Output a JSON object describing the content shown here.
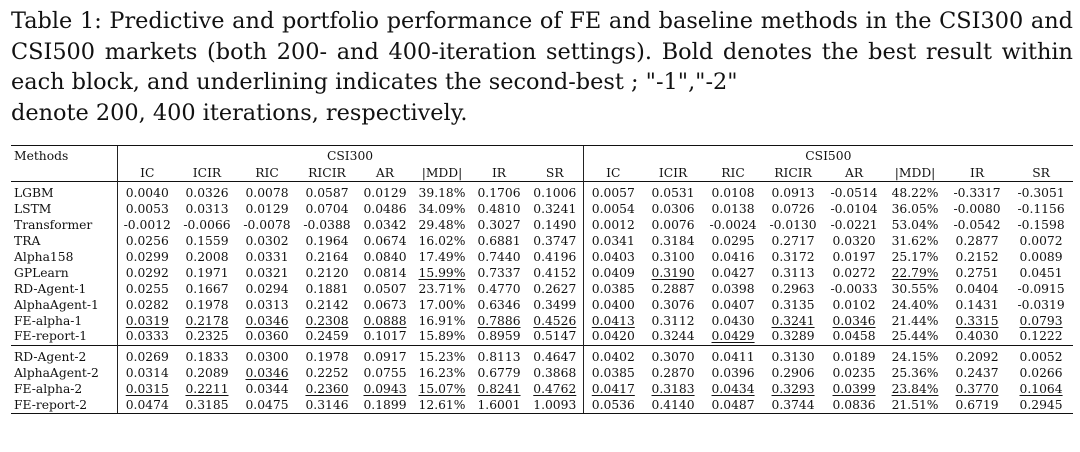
{
  "caption": {
    "line1": "Table 1: Predictive and portfolio performance of FE and baseline methods in the",
    "line2": "CSI300 and CSI500 markets (both 200- and 400-iteration settings). Bold denotes the",
    "line3": "best result within each block, and underlining indicates the second-best ; \"-1\",\"-2\"",
    "line4": "denote 200, 400 iterations, respectively."
  },
  "table": {
    "methods_header": "Methods",
    "groups": [
      "CSI300",
      "CSI500"
    ],
    "columns": [
      "IC",
      "ICIR",
      "RIC",
      "RICIR",
      "AR",
      "|MDD|",
      "IR",
      "SR",
      "IC",
      "ICIR",
      "RIC",
      "RICIR",
      "AR",
      "|MDD|",
      "IR",
      "SR"
    ],
    "blocks": [
      {
        "rows": [
          {
            "method": "LGBM",
            "cells": [
              {
                "v": "0.0040"
              },
              {
                "v": "0.0326"
              },
              {
                "v": "0.0078"
              },
              {
                "v": "0.0587"
              },
              {
                "v": "0.0129"
              },
              {
                "v": "39.18%"
              },
              {
                "v": "0.1706"
              },
              {
                "v": "0.1006"
              },
              {
                "v": "0.0057"
              },
              {
                "v": "0.0531"
              },
              {
                "v": "0.0108"
              },
              {
                "v": "0.0913"
              },
              {
                "v": "-0.0514"
              },
              {
                "v": "48.22%"
              },
              {
                "v": "-0.3317"
              },
              {
                "v": "-0.3051"
              }
            ]
          },
          {
            "method": "LSTM",
            "cells": [
              {
                "v": "0.0053"
              },
              {
                "v": "0.0313"
              },
              {
                "v": "0.0129"
              },
              {
                "v": "0.0704"
              },
              {
                "v": "0.0486"
              },
              {
                "v": "34.09%"
              },
              {
                "v": "0.4810"
              },
              {
                "v": "0.3241"
              },
              {
                "v": "0.0054"
              },
              {
                "v": "0.0306"
              },
              {
                "v": "0.0138"
              },
              {
                "v": "0.0726"
              },
              {
                "v": "-0.0104"
              },
              {
                "v": "36.05%"
              },
              {
                "v": "-0.0080"
              },
              {
                "v": "-0.1156"
              }
            ]
          },
          {
            "method": "Transformer",
            "cells": [
              {
                "v": "-0.0012"
              },
              {
                "v": "-0.0066"
              },
              {
                "v": "-0.0078"
              },
              {
                "v": "-0.0388"
              },
              {
                "v": "0.0342"
              },
              {
                "v": "29.48%"
              },
              {
                "v": "0.3027"
              },
              {
                "v": "0.1490"
              },
              {
                "v": "0.0012"
              },
              {
                "v": "0.0076"
              },
              {
                "v": "-0.0024"
              },
              {
                "v": "-0.0130"
              },
              {
                "v": "-0.0221"
              },
              {
                "v": "53.04%"
              },
              {
                "v": "-0.0542"
              },
              {
                "v": "-0.1598"
              }
            ]
          },
          {
            "method": "TRA",
            "cells": [
              {
                "v": "0.0256"
              },
              {
                "v": "0.1559"
              },
              {
                "v": "0.0302"
              },
              {
                "v": "0.1964"
              },
              {
                "v": "0.0674"
              },
              {
                "v": "16.02%"
              },
              {
                "v": "0.6881"
              },
              {
                "v": "0.3747"
              },
              {
                "v": "0.0341"
              },
              {
                "v": "0.3184"
              },
              {
                "v": "0.0295"
              },
              {
                "v": "0.2717"
              },
              {
                "v": "0.0320"
              },
              {
                "v": "31.62%"
              },
              {
                "v": "0.2877"
              },
              {
                "v": "0.0072"
              }
            ]
          },
          {
            "method": "Alpha158",
            "cells": [
              {
                "v": "0.0299"
              },
              {
                "v": "0.2008"
              },
              {
                "v": "0.0331"
              },
              {
                "v": "0.2164"
              },
              {
                "v": "0.0840"
              },
              {
                "v": "17.49%"
              },
              {
                "v": "0.7440"
              },
              {
                "v": "0.4196"
              },
              {
                "v": "0.0403"
              },
              {
                "v": "0.3100"
              },
              {
                "v": "0.0416"
              },
              {
                "v": "0.3172"
              },
              {
                "v": "0.0197"
              },
              {
                "v": "25.17%"
              },
              {
                "v": "0.2152"
              },
              {
                "v": "0.0089"
              }
            ]
          },
          {
            "method": "GPLearn",
            "cells": [
              {
                "v": "0.0292"
              },
              {
                "v": "0.1971"
              },
              {
                "v": "0.0321"
              },
              {
                "v": "0.2120"
              },
              {
                "v": "0.0814"
              },
              {
                "v": "15.99%",
                "u": true
              },
              {
                "v": "0.7337"
              },
              {
                "v": "0.4152"
              },
              {
                "v": "0.0409"
              },
              {
                "v": "0.3190",
                "u": true
              },
              {
                "v": "0.0427"
              },
              {
                "v": "0.3113"
              },
              {
                "v": "0.0272"
              },
              {
                "v": "22.79%",
                "u": true
              },
              {
                "v": "0.2751"
              },
              {
                "v": "0.0451"
              }
            ]
          },
          {
            "method": "RD-Agent-1",
            "cells": [
              {
                "v": "0.0255"
              },
              {
                "v": "0.1667"
              },
              {
                "v": "0.0294"
              },
              {
                "v": "0.1881"
              },
              {
                "v": "0.0507"
              },
              {
                "v": "23.71%"
              },
              {
                "v": "0.4770"
              },
              {
                "v": "0.2627"
              },
              {
                "v": "0.0385"
              },
              {
                "v": "0.2887"
              },
              {
                "v": "0.0398"
              },
              {
                "v": "0.2963"
              },
              {
                "v": "-0.0033"
              },
              {
                "v": "30.55%"
              },
              {
                "v": "0.0404"
              },
              {
                "v": "-0.0915"
              }
            ]
          },
          {
            "method": "AlphaAgent-1",
            "cells": [
              {
                "v": "0.0282"
              },
              {
                "v": "0.1978"
              },
              {
                "v": "0.0313"
              },
              {
                "v": "0.2142"
              },
              {
                "v": "0.0673"
              },
              {
                "v": "17.00%"
              },
              {
                "v": "0.6346"
              },
              {
                "v": "0.3499"
              },
              {
                "v": "0.0400"
              },
              {
                "v": "0.3076"
              },
              {
                "v": "0.0407"
              },
              {
                "v": "0.3135"
              },
              {
                "v": "0.0102"
              },
              {
                "v": "24.40%"
              },
              {
                "v": "0.1431"
              },
              {
                "v": "-0.0319"
              }
            ]
          },
          {
            "method": "FE-alpha-1",
            "cells": [
              {
                "v": "0.0319",
                "u": true
              },
              {
                "v": "0.2178",
                "u": true
              },
              {
                "v": "0.0346",
                "u": true
              },
              {
                "v": "0.2308",
                "u": true
              },
              {
                "v": "0.0888",
                "u": true
              },
              {
                "v": "16.91%"
              },
              {
                "v": "0.7886",
                "u": true
              },
              {
                "v": "0.4526",
                "u": true
              },
              {
                "v": "0.0413",
                "u": true
              },
              {
                "v": "0.3112"
              },
              {
                "v": "0.0430",
                "b": true
              },
              {
                "v": "0.3241",
                "u": true
              },
              {
                "v": "0.0346",
                "u": true
              },
              {
                "v": "21.44%",
                "b": true
              },
              {
                "v": "0.3315",
                "u": true
              },
              {
                "v": "0.0793",
                "u": true
              }
            ]
          },
          {
            "method": "FE-report-1",
            "cells": [
              {
                "v": "0.0333",
                "b": true
              },
              {
                "v": "0.2325",
                "b": true
              },
              {
                "v": "0.0360",
                "b": true
              },
              {
                "v": "0.2459",
                "b": true
              },
              {
                "v": "0.1017",
                "b": true
              },
              {
                "v": "15.89%",
                "b": true
              },
              {
                "v": "0.8959",
                "b": true
              },
              {
                "v": "0.5147",
                "b": true
              },
              {
                "v": "0.0420",
                "b": true
              },
              {
                "v": "0.3244",
                "b": true
              },
              {
                "v": "0.0429",
                "u": true
              },
              {
                "v": "0.3289",
                "b": true
              },
              {
                "v": "0.0458",
                "b": true
              },
              {
                "v": "25.44%"
              },
              {
                "v": "0.4030",
                "b": true
              },
              {
                "v": "0.1222",
                "b": true
              }
            ]
          }
        ]
      },
      {
        "rows": [
          {
            "method": "RD-Agent-2",
            "cells": [
              {
                "v": "0.0269"
              },
              {
                "v": "0.1833"
              },
              {
                "v": "0.0300"
              },
              {
                "v": "0.1978"
              },
              {
                "v": "0.0917"
              },
              {
                "v": "15.23%"
              },
              {
                "v": "0.8113"
              },
              {
                "v": "0.4647"
              },
              {
                "v": "0.0402"
              },
              {
                "v": "0.3070"
              },
              {
                "v": "0.0411"
              },
              {
                "v": "0.3130"
              },
              {
                "v": "0.0189"
              },
              {
                "v": "24.15%"
              },
              {
                "v": "0.2092"
              },
              {
                "v": "0.0052"
              }
            ]
          },
          {
            "method": "AlphaAgent-2",
            "cells": [
              {
                "v": "0.0314"
              },
              {
                "v": "0.2089"
              },
              {
                "v": "0.0346",
                "u": true
              },
              {
                "v": "0.2252"
              },
              {
                "v": "0.0755"
              },
              {
                "v": "16.23%"
              },
              {
                "v": "0.6779"
              },
              {
                "v": "0.3868"
              },
              {
                "v": "0.0385"
              },
              {
                "v": "0.2870"
              },
              {
                "v": "0.0396"
              },
              {
                "v": "0.2906"
              },
              {
                "v": "0.0235"
              },
              {
                "v": "25.36%"
              },
              {
                "v": "0.2437"
              },
              {
                "v": "0.0266"
              }
            ]
          },
          {
            "method": "FE-alpha-2",
            "cells": [
              {
                "v": "0.0315",
                "u": true
              },
              {
                "v": "0.2211",
                "u": true
              },
              {
                "v": "0.0344"
              },
              {
                "v": "0.2360",
                "u": true
              },
              {
                "v": "0.0943",
                "u": true
              },
              {
                "v": "15.07%",
                "u": true
              },
              {
                "v": "0.8241",
                "u": true
              },
              {
                "v": "0.4762",
                "u": true
              },
              {
                "v": "0.0417",
                "u": true
              },
              {
                "v": "0.3183",
                "u": true
              },
              {
                "v": "0.0434",
                "u": true
              },
              {
                "v": "0.3293",
                "u": true
              },
              {
                "v": "0.0399",
                "u": true
              },
              {
                "v": "23.84%",
                "u": true
              },
              {
                "v": "0.3770",
                "u": true
              },
              {
                "v": "0.1064",
                "u": true
              }
            ]
          },
          {
            "method": "FE-report-2",
            "cells": [
              {
                "v": "0.0474",
                "b": true
              },
              {
                "v": "0.3185",
                "b": true
              },
              {
                "v": "0.0475",
                "b": true
              },
              {
                "v": "0.3146",
                "b": true
              },
              {
                "v": "0.1899",
                "b": true
              },
              {
                "v": "12.61%",
                "b": true
              },
              {
                "v": "1.6001",
                "b": true
              },
              {
                "v": "1.0093",
                "b": true
              },
              {
                "v": "0.0536",
                "b": true
              },
              {
                "v": "0.4140",
                "b": true
              },
              {
                "v": "0.0487",
                "b": true
              },
              {
                "v": "0.3744",
                "b": true
              },
              {
                "v": "0.0836",
                "b": true
              },
              {
                "v": "21.51%",
                "b": true
              },
              {
                "v": "0.6719",
                "b": true
              },
              {
                "v": "0.2945",
                "b": true
              }
            ]
          }
        ]
      }
    ]
  }
}
